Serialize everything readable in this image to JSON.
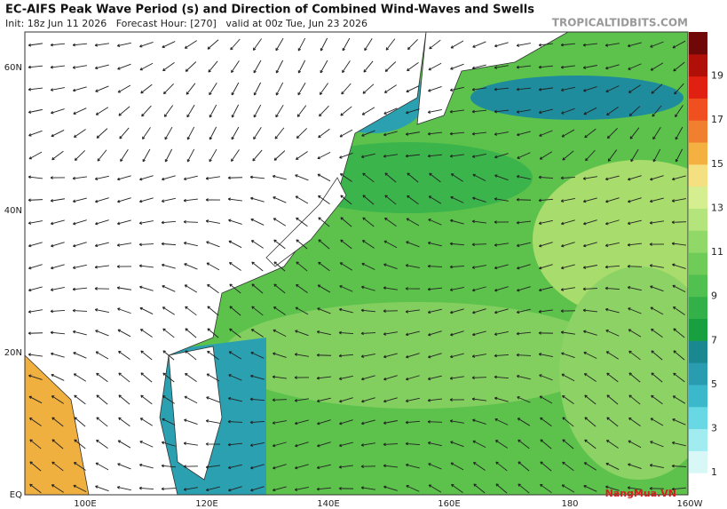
{
  "header": {
    "title": "EC-AIFS Peak Wave Period (s) and Direction of Combined Wind-Waves and Swells",
    "subtitle": "Init: 18z Jun 11 2026   Forecast Hour: [270]   valid at 00z Tue, Jun 23 2026",
    "credit": "TROPICALTIDBITS.COM"
  },
  "map": {
    "lat_labels": [
      "60N",
      "40N",
      "20N",
      "EQ"
    ],
    "lon_labels": [
      "100E",
      "120E",
      "140E",
      "160E",
      "180",
      "160W"
    ]
  },
  "colorbar": {
    "labels": [
      "19",
      "17",
      "15",
      "13",
      "11",
      "9",
      "7",
      "5",
      "3",
      "1"
    ]
  },
  "watermark": "NangMua.VN"
}
